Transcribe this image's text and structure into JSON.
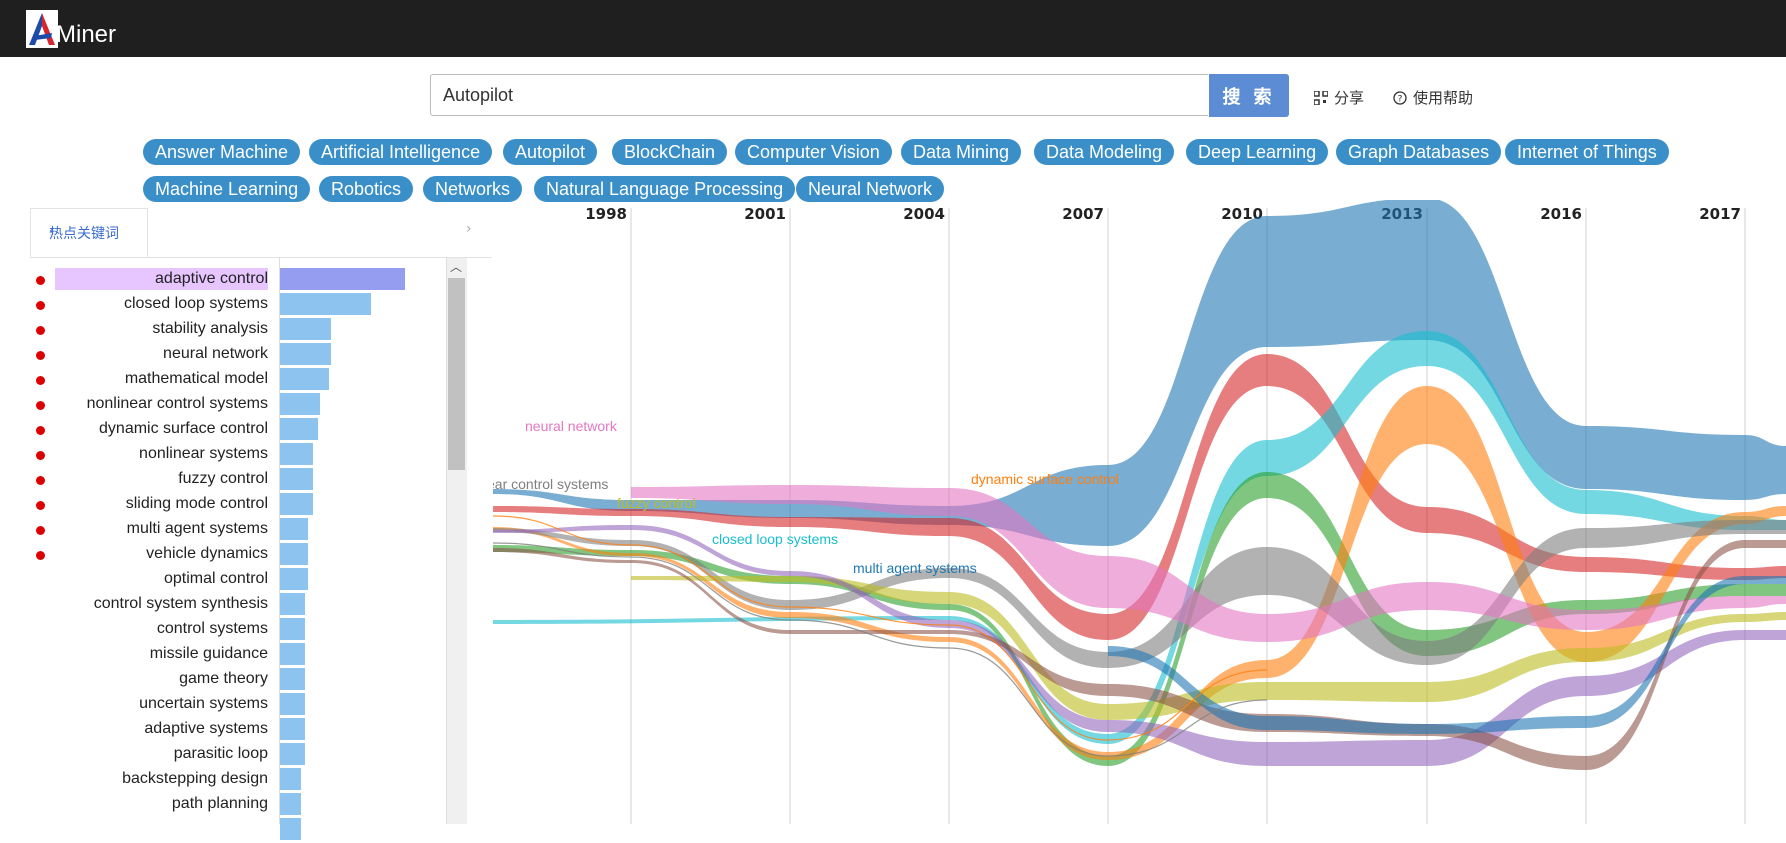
{
  "app": {
    "logo_text": "Miner"
  },
  "search": {
    "value": "Autopilot",
    "button_label": "搜 索"
  },
  "actions": {
    "share": "分享",
    "help": "使用帮助"
  },
  "tags": [
    "Answer Machine",
    "Artificial Intelligence",
    "Autopilot",
    "BlockChain",
    "Computer Vision",
    "Data Mining",
    "Data Modeling",
    "Deep Learning",
    "Graph Databases",
    "Internet of Things",
    "Machine Learning",
    "Robotics",
    "Networks",
    "Natural Language Processing",
    "Neural Network"
  ],
  "keywords_panel": {
    "tab_label": "热点关键词",
    "items": [
      {
        "label": "adaptive control",
        "hot": true,
        "value": 1.0,
        "selected": true
      },
      {
        "label": "closed loop systems",
        "hot": true,
        "value": 0.73
      },
      {
        "label": "stability analysis",
        "hot": true,
        "value": 0.41
      },
      {
        "label": "neural network",
        "hot": true,
        "value": 0.41
      },
      {
        "label": "mathematical model",
        "hot": true,
        "value": 0.39
      },
      {
        "label": "nonlinear control systems",
        "hot": true,
        "value": 0.32
      },
      {
        "label": "dynamic surface control",
        "hot": true,
        "value": 0.3
      },
      {
        "label": "nonlinear systems",
        "hot": true,
        "value": 0.26
      },
      {
        "label": "fuzzy control",
        "hot": true,
        "value": 0.26
      },
      {
        "label": "sliding mode control",
        "hot": true,
        "value": 0.26
      },
      {
        "label": "multi agent systems",
        "hot": true,
        "value": 0.22
      },
      {
        "label": "vehicle dynamics",
        "hot": true,
        "value": 0.22
      },
      {
        "label": "optimal control",
        "hot": false,
        "value": 0.22
      },
      {
        "label": "control system synthesis",
        "hot": false,
        "value": 0.2
      },
      {
        "label": "control systems",
        "hot": false,
        "value": 0.2
      },
      {
        "label": "missile guidance",
        "hot": false,
        "value": 0.2
      },
      {
        "label": "game theory",
        "hot": false,
        "value": 0.2
      },
      {
        "label": "uncertain systems",
        "hot": false,
        "value": 0.2
      },
      {
        "label": "adaptive systems",
        "hot": false,
        "value": 0.2
      },
      {
        "label": "parasitic loop",
        "hot": false,
        "value": 0.2
      },
      {
        "label": "backstepping design",
        "hot": false,
        "value": 0.17
      },
      {
        "label": "path planning",
        "hot": false,
        "value": 0.17
      },
      {
        "label": "",
        "hot": false,
        "value": 0.17
      }
    ]
  },
  "chart_data": {
    "type": "area",
    "x": [
      "1998",
      "2001",
      "2004",
      "2007",
      "2010",
      "2013",
      "2016",
      "2017"
    ],
    "series_labels_shown": [
      {
        "name": "neural network",
        "color": "#e377c2"
      },
      {
        "name": "ear control systems",
        "color": "#7f7f7f"
      },
      {
        "name": "fuzzy control",
        "color": "#bcbd22"
      },
      {
        "name": "closed loop systems",
        "color": "#17becf"
      },
      {
        "name": "dynamic surface control",
        "color": "#ff7f0e"
      },
      {
        "name": "multi agent systems",
        "color": "#1f77b4"
      }
    ],
    "colors": {
      "blue": "#1f77b4",
      "red": "#d62728",
      "cyan": "#17becf",
      "green": "#2ca02c",
      "orange": "#ff7f0e",
      "gray": "#7f7f7f",
      "pink": "#e377c2",
      "olive": "#bcbd22",
      "purple": "#9467bd",
      "brown": "#8c564b"
    }
  }
}
